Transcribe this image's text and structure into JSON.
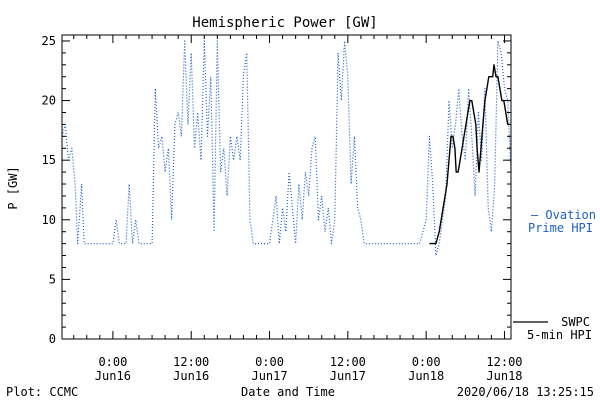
{
  "footer": {
    "left": "Plot: CCMC",
    "center": "Date and Time",
    "right": "2020/06/18 13:25:15"
  },
  "colors": {
    "ovation": "#1f5fc4",
    "swpc": "#000000"
  },
  "chart_data": {
    "type": "line",
    "title": "Hemispheric Power [GW]",
    "xlabel": "",
    "ylabel": "P [GW]",
    "x_unit": "hours relative to 2020/06/16 00:00 UTC",
    "xlim": [
      -7.8,
      61
    ],
    "ylim": [
      0,
      25.5
    ],
    "yticks": [
      0,
      5,
      10,
      15,
      20,
      25
    ],
    "xticks": [
      {
        "x": 0,
        "time": "0:00",
        "date": "Jun16"
      },
      {
        "x": 12,
        "time": "12:00",
        "date": "Jun16"
      },
      {
        "x": 24,
        "time": "0:00",
        "date": "Jun17"
      },
      {
        "x": 36,
        "time": "12:00",
        "date": "Jun17"
      },
      {
        "x": 48,
        "time": "0:00",
        "date": "Jun18"
      },
      {
        "x": 60,
        "time": "12:00",
        "date": "Jun18"
      }
    ],
    "legend_position": "right",
    "series": [
      {
        "name": "Ovation Prime HPI",
        "legend_lines": [
          "— Ovation",
          "Prime HPI"
        ],
        "style": "dotted",
        "points": [
          [
            -7.8,
            17
          ],
          [
            -7.3,
            18
          ],
          [
            -6.8,
            15
          ],
          [
            -6.3,
            16
          ],
          [
            -5.8,
            13
          ],
          [
            -5.4,
            8
          ],
          [
            -4.8,
            13
          ],
          [
            -4.4,
            8
          ],
          [
            -3,
            8
          ],
          [
            -2,
            8
          ],
          [
            -1,
            8
          ],
          [
            0,
            8
          ],
          [
            0.5,
            10
          ],
          [
            1,
            8
          ],
          [
            2,
            8
          ],
          [
            2.5,
            13
          ],
          [
            3,
            8
          ],
          [
            3.5,
            10
          ],
          [
            4,
            8
          ],
          [
            5,
            8
          ],
          [
            6,
            8
          ],
          [
            6.5,
            21
          ],
          [
            7,
            16
          ],
          [
            7.5,
            17
          ],
          [
            8,
            14
          ],
          [
            8.5,
            16
          ],
          [
            9,
            10
          ],
          [
            9.5,
            18
          ],
          [
            10,
            19
          ],
          [
            10.5,
            17
          ],
          [
            11,
            25
          ],
          [
            11.5,
            18
          ],
          [
            12,
            24
          ],
          [
            12.5,
            16
          ],
          [
            13,
            19
          ],
          [
            13.5,
            15
          ],
          [
            14,
            25
          ],
          [
            14.5,
            17
          ],
          [
            15,
            22
          ],
          [
            15.5,
            9
          ],
          [
            16,
            25
          ],
          [
            16.5,
            14
          ],
          [
            17,
            16
          ],
          [
            17.5,
            12
          ],
          [
            18,
            17
          ],
          [
            18.5,
            15
          ],
          [
            19,
            17
          ],
          [
            19.5,
            15
          ],
          [
            20,
            22
          ],
          [
            20.5,
            24
          ],
          [
            21,
            10
          ],
          [
            21.5,
            8
          ],
          [
            22,
            8
          ],
          [
            23,
            8
          ],
          [
            24,
            8
          ],
          [
            24.5,
            10
          ],
          [
            25,
            12
          ],
          [
            25.5,
            8
          ],
          [
            26,
            11
          ],
          [
            26.5,
            9
          ],
          [
            27,
            14
          ],
          [
            27.5,
            11
          ],
          [
            28,
            8
          ],
          [
            28.5,
            13
          ],
          [
            29,
            10
          ],
          [
            29.5,
            14
          ],
          [
            30,
            12
          ],
          [
            30.5,
            16
          ],
          [
            31,
            17
          ],
          [
            31.5,
            10
          ],
          [
            32,
            12
          ],
          [
            32.5,
            9
          ],
          [
            33,
            11
          ],
          [
            33.5,
            8
          ],
          [
            34,
            10
          ],
          [
            34.5,
            24
          ],
          [
            35,
            20
          ],
          [
            35.5,
            25
          ],
          [
            36,
            22
          ],
          [
            36.5,
            13
          ],
          [
            37,
            17
          ],
          [
            37.5,
            11
          ],
          [
            38,
            10
          ],
          [
            38.5,
            8
          ],
          [
            39,
            8
          ],
          [
            40,
            8
          ],
          [
            42,
            8
          ],
          [
            44,
            8
          ],
          [
            46,
            8
          ],
          [
            47,
            8
          ],
          [
            47.5,
            9
          ],
          [
            48,
            10
          ],
          [
            48.5,
            17
          ],
          [
            49,
            13
          ],
          [
            49.5,
            7
          ],
          [
            50,
            8
          ],
          [
            50.5,
            10
          ],
          [
            51,
            12
          ],
          [
            51.5,
            20
          ],
          [
            52,
            16
          ],
          [
            52.5,
            18
          ],
          [
            53,
            21
          ],
          [
            53.5,
            17
          ],
          [
            54,
            15
          ],
          [
            54.5,
            21
          ],
          [
            55,
            17
          ],
          [
            55.5,
            12
          ],
          [
            56,
            19
          ],
          [
            56.5,
            15
          ],
          [
            57,
            21
          ],
          [
            57.5,
            11
          ],
          [
            58,
            9
          ],
          [
            58.5,
            13
          ],
          [
            59,
            25
          ],
          [
            59.5,
            24
          ],
          [
            60,
            21
          ],
          [
            60.5,
            20
          ],
          [
            61,
            14
          ]
        ]
      },
      {
        "name": "SWPC 5-min HPI",
        "legend_lines": [
          "SWPC",
          "5-min HPI"
        ],
        "style": "solid",
        "points": [
          [
            48.5,
            8
          ],
          [
            49.5,
            8
          ],
          [
            50,
            9
          ],
          [
            50.3,
            10
          ],
          [
            50.6,
            11
          ],
          [
            50.9,
            12
          ],
          [
            51.2,
            13
          ],
          [
            51.5,
            15
          ],
          [
            51.8,
            17
          ],
          [
            52.1,
            17
          ],
          [
            52.4,
            16
          ],
          [
            52.6,
            14
          ],
          [
            52.9,
            14
          ],
          [
            53.2,
            15
          ],
          [
            53.5,
            16
          ],
          [
            53.8,
            17
          ],
          [
            54.1,
            18
          ],
          [
            54.4,
            19
          ],
          [
            54.7,
            20
          ],
          [
            55,
            20
          ],
          [
            55.3,
            19
          ],
          [
            55.6,
            18
          ],
          [
            55.8,
            16
          ],
          [
            56.1,
            14
          ],
          [
            56.4,
            16
          ],
          [
            56.7,
            18
          ],
          [
            57,
            20
          ],
          [
            57.3,
            21
          ],
          [
            57.6,
            22
          ],
          [
            57.9,
            22
          ],
          [
            58.2,
            22
          ],
          [
            58.4,
            23
          ],
          [
            58.7,
            22
          ],
          [
            59,
            22
          ],
          [
            59.3,
            21
          ],
          [
            59.6,
            20
          ],
          [
            59.9,
            20
          ],
          [
            60.2,
            19
          ],
          [
            60.5,
            18
          ]
        ]
      }
    ]
  }
}
